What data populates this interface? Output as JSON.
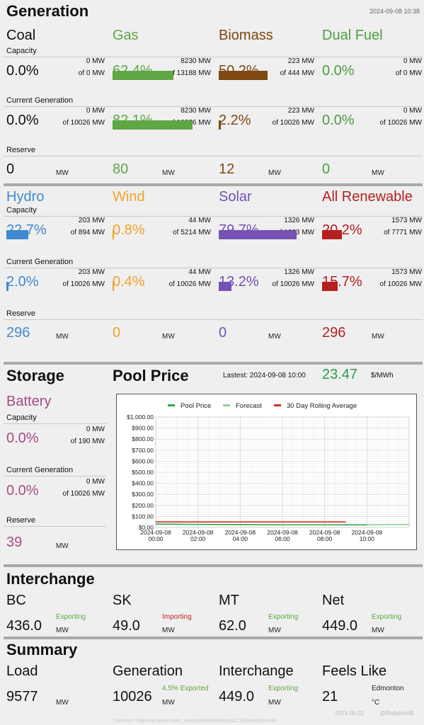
{
  "generation": {
    "title": "Generation",
    "timestamp": "2024-09-08 10:38",
    "row_labels": {
      "capacity": "Capacity",
      "current": "Current Generation",
      "reserve": "Reserve"
    },
    "unit": "MW",
    "group1": [
      {
        "name": "Coal",
        "color": "#111111",
        "cap_pct": "0.0%",
        "cap_mw": "0 MW",
        "cap_of": "of 0 MW",
        "cap_fill": 0.0,
        "cur_pct": "0.0%",
        "cur_mw": "0 MW",
        "cur_of": "of 10026 MW",
        "cur_fill": 0.0,
        "reserve": "0"
      },
      {
        "name": "Gas",
        "color": "#5fa645",
        "cap_pct": "62.4%",
        "cap_mw": "8230 MW",
        "cap_of": "of 13188 MW",
        "cap_fill": 0.624,
        "cur_pct": "82.1%",
        "cur_mw": "8230 MW",
        "cur_of": "of 10026 MW",
        "cur_fill": 0.821,
        "reserve": "80"
      },
      {
        "name": "Biomass",
        "color": "#7d4811",
        "cap_pct": "50.2%",
        "cap_mw": "223 MW",
        "cap_of": "of 444 MW",
        "cap_fill": 0.502,
        "cur_pct": "2.2%",
        "cur_mw": "223 MW",
        "cur_of": "of 10026 MW",
        "cur_fill": 0.022,
        "reserve": "12"
      },
      {
        "name": "Dual Fuel",
        "color": "#4c9e3f",
        "cap_pct": "0.0%",
        "cap_mw": "0 MW",
        "cap_of": "of 0 MW",
        "cap_fill": 0.0,
        "cur_pct": "0.0%",
        "cur_mw": "0 MW",
        "cur_of": "of 10026 MW",
        "cur_fill": 0.0,
        "reserve": "0"
      }
    ],
    "group2": [
      {
        "name": "Hydro",
        "color": "#3f8ace",
        "cap_pct": "22.7%",
        "cap_mw": "203 MW",
        "cap_of": "of 894 MW",
        "cap_fill": 0.227,
        "cur_pct": "2.0%",
        "cur_mw": "203 MW",
        "cur_of": "of 10026 MW",
        "cur_fill": 0.02,
        "reserve": "296"
      },
      {
        "name": "Wind",
        "color": "#f0a32a",
        "cap_pct": "0.8%",
        "cap_mw": "44 MW",
        "cap_of": "of 5214 MW",
        "cap_fill": 0.008,
        "cur_pct": "0.4%",
        "cur_mw": "44 MW",
        "cur_of": "of 10026 MW",
        "cur_fill": 0.004,
        "reserve": "0"
      },
      {
        "name": "Solar",
        "color": "#7552b3",
        "cap_pct": "79.7%",
        "cap_mw": "1326 MW",
        "cap_of": "of 1663 MW",
        "cap_fill": 0.797,
        "cur_pct": "13.2%",
        "cur_mw": "1326 MW",
        "cur_of": "of 10026 MW",
        "cur_fill": 0.132,
        "reserve": "0"
      },
      {
        "name": "All Renewable",
        "color": "#b51f1f",
        "cap_pct": "20.2%",
        "cap_mw": "1573 MW",
        "cap_of": "of 7771 MW",
        "cap_fill": 0.202,
        "cur_pct": "15.7%",
        "cur_mw": "1573 MW",
        "cur_of": "of 10026 MW",
        "cur_fill": 0.157,
        "reserve": "296"
      }
    ]
  },
  "storage": {
    "title": "Storage",
    "battery": {
      "name": "Battery",
      "cap_label": "Capacity",
      "cap_pct": "0.0%",
      "cap_mw": "0 MW",
      "cap_of": "of 190 MW",
      "cur_label": "Current Generation",
      "cur_pct": "0.0%",
      "cur_mw": "0 MW",
      "cur_of": "of 10026 MW",
      "res_label": "Reserve",
      "reserve": "39",
      "unit": "MW"
    }
  },
  "pool_price": {
    "title": "Pool Price",
    "latest_label": "Lastest: 2024-09-08 10:00",
    "value": "23.47",
    "unit": "$/MWh"
  },
  "chart_data": {
    "type": "line",
    "legend": [
      "Pool Price",
      "Forecast",
      "30 Day Rolling Average"
    ],
    "legend_placement": "top",
    "colors": [
      "#2ea84a",
      "#8fd18e",
      "#d93025"
    ],
    "y_ticks": [
      "$1,000.00",
      "$900.00",
      "$800.00",
      "$700.00",
      "$600.00",
      "$500.00",
      "$400.00",
      "$300.00",
      "$200.00",
      "$100.00",
      "$0.00"
    ],
    "x_ticks": [
      [
        "2024-09-08",
        "00:00"
      ],
      [
        "2024-09-08",
        "02:00"
      ],
      [
        "2024-09-08",
        "04:00"
      ],
      [
        "2024-09-08",
        "06:00"
      ],
      [
        "2024-09-08",
        "08:00"
      ],
      [
        "2024-09-08",
        "10:00"
      ]
    ],
    "ylim": [
      0,
      1000
    ],
    "xlim_hours": [
      0,
      12
    ],
    "grid": true,
    "series": [
      {
        "name": "Pool Price",
        "x": [
          0,
          1,
          2,
          3,
          4,
          5,
          6,
          7,
          8,
          9,
          10
        ],
        "y": [
          30,
          29,
          28,
          27,
          26,
          25,
          24,
          24,
          24,
          23.5,
          23.47
        ]
      },
      {
        "name": "Forecast",
        "x": [
          10,
          11,
          12
        ],
        "y": [
          23.47,
          25,
          26
        ]
      },
      {
        "name": "30 Day Rolling Average",
        "x": [
          0,
          9
        ],
        "y": [
          50,
          50
        ]
      }
    ]
  },
  "interchange": {
    "title": "Interchange",
    "unit": "MW",
    "items": [
      {
        "name": "BC",
        "value": "436.0",
        "status": "Exporting",
        "status_color": "#5fa645"
      },
      {
        "name": "SK",
        "value": "49.0",
        "status": "Importing",
        "status_color": "#c62020"
      },
      {
        "name": "MT",
        "value": "62.0",
        "status": "Exporting",
        "status_color": "#5fa645"
      },
      {
        "name": "Net",
        "value": "449.0",
        "status": "Exporting",
        "status_color": "#5fa645"
      }
    ]
  },
  "summary": {
    "title": "Summary",
    "unit": "MW",
    "load_label": "Load",
    "load_value": "9577",
    "gen_label": "Generation",
    "gen_value": "10026",
    "gen_status": "4.5% Exported",
    "inter_label": "Interchange",
    "inter_value": "449.0",
    "inter_status": "Exporting",
    "feels_label": "Feels Like",
    "feels_value": "21",
    "feels_city": "Edmonton",
    "feels_unit": "°C"
  },
  "footer": {
    "date": "2023-09-02",
    "handle": "@ReliableAB",
    "source": "Data from http://ets.aeso.ca/ets_web/ip/Market/Reports/CSDReportServlet"
  }
}
